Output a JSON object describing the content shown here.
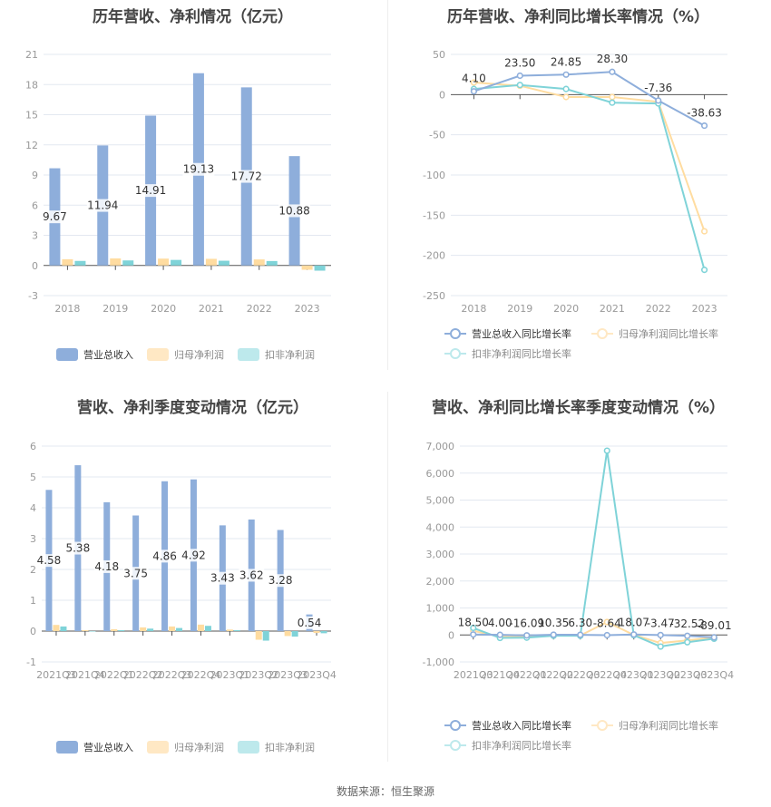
{
  "source": "数据来源：恒生聚源",
  "colors": {
    "revenue": "#8eaedb",
    "net_profit": "#ffdca0",
    "deducted_profit": "#7fd3d8",
    "revenue_legend": "#8eaedb",
    "net_profit_legend": "#ffe8c4",
    "deducted_legend": "#bde9ec",
    "grid": "#e3e8f0",
    "axis": "#555555",
    "tick_text": "#999999",
    "label_text": "#333333"
  },
  "chart_data": [
    {
      "id": "annual-amounts",
      "type": "bar",
      "title": "历年营收、净利情况（亿元）",
      "categories": [
        "2018",
        "2019",
        "2020",
        "2021",
        "2022",
        "2023"
      ],
      "series": [
        {
          "name": "营业总收入",
          "values": [
            9.67,
            11.94,
            14.91,
            19.13,
            17.72,
            10.88
          ]
        },
        {
          "name": "归母净利润",
          "values": [
            0.62,
            0.7,
            0.68,
            0.66,
            0.6,
            -0.43
          ]
        },
        {
          "name": "扣非净利润",
          "values": [
            0.45,
            0.5,
            0.55,
            0.47,
            0.44,
            -0.52
          ]
        }
      ],
      "data_labels": [
        "9.67",
        "11.94",
        "14.91",
        "19.13",
        "17.72",
        "10.88"
      ],
      "yticks": [
        "21",
        "18",
        "15",
        "12",
        "9",
        "6",
        "3",
        "0",
        "-3"
      ],
      "ylim": [
        -3,
        21
      ],
      "legend": [
        "营业总收入",
        "归母净利润",
        "扣非净利润"
      ],
      "legend_position": "bottom",
      "grid": true
    },
    {
      "id": "annual-growth",
      "type": "line",
      "title": "历年营收、净利同比增长率情况（%）",
      "categories": [
        "2018",
        "2019",
        "2020",
        "2021",
        "2022",
        "2023"
      ],
      "series": [
        {
          "name": "营业总收入同比增长率",
          "values": [
            4.1,
            23.5,
            24.85,
            28.3,
            -7.36,
            -38.63
          ]
        },
        {
          "name": "归母净利润同比增长率",
          "values": [
            15,
            11,
            -3,
            -3,
            -9,
            -170
          ]
        },
        {
          "name": "扣非净利润同比增长率",
          "values": [
            7,
            12,
            7,
            -10,
            -11,
            -218
          ]
        }
      ],
      "data_labels": [
        "4.10",
        "23.50",
        "24.85",
        "28.30",
        "-7.36",
        "-38.63"
      ],
      "yticks": [
        "50",
        "0",
        "-50",
        "-100",
        "-150",
        "-200",
        "-250"
      ],
      "ylim": [
        -250,
        50
      ],
      "legend": [
        "营业总收入同比增长率",
        "归母净利润同比增长率",
        "扣非净利润同比增长率"
      ],
      "legend_position": "bottom",
      "grid": true
    },
    {
      "id": "quarterly-amounts",
      "type": "bar",
      "title": "营收、净利季度变动情况（亿元）",
      "categories": [
        "2021Q3",
        "2021Q4",
        "2022Q1",
        "2022Q2",
        "2022Q3",
        "2022Q4",
        "2023Q1",
        "2023Q2",
        "2023Q3",
        "2023Q4"
      ],
      "series": [
        {
          "name": "营业总收入",
          "values": [
            4.58,
            5.38,
            4.18,
            3.75,
            4.86,
            4.92,
            3.43,
            3.62,
            3.28,
            0.54
          ]
        },
        {
          "name": "归母净利润",
          "values": [
            0.2,
            0.03,
            0.06,
            0.12,
            0.15,
            0.21,
            0.05,
            -0.28,
            -0.16,
            -0.06
          ]
        },
        {
          "name": "扣非净利润",
          "values": [
            0.15,
            0.0,
            0.03,
            0.08,
            0.1,
            0.17,
            0.03,
            -0.31,
            -0.18,
            -0.07
          ]
        }
      ],
      "data_labels": [
        "4.58",
        "5.38",
        "4.18",
        "3.75",
        "4.86",
        "4.92",
        "3.43",
        "3.62",
        "3.28",
        "0.54"
      ],
      "yticks": [
        "6",
        "5",
        "4",
        "3",
        "2",
        "1",
        "0",
        "-1"
      ],
      "ylim": [
        -1,
        6
      ],
      "legend": [
        "营业总收入",
        "归母净利润",
        "扣非净利润"
      ],
      "legend_position": "bottom",
      "grid": true
    },
    {
      "id": "quarterly-growth",
      "type": "line",
      "title": "营收、净利同比增长率季度变动情况（%）",
      "categories": [
        "2021Q3",
        "2021Q4",
        "2022Q1",
        "2022Q2",
        "2022Q3",
        "2022Q4",
        "2023Q1",
        "2023Q2",
        "2023Q3",
        "2023Q4"
      ],
      "series": [
        {
          "name": "营业总收入同比增长率",
          "values": [
            18.5,
            4.0,
            -16.09,
            10.35,
            6.3,
            -8.64,
            18.07,
            -3.47,
            -32.52,
            -89.01
          ]
        },
        {
          "name": "归母净利润同比增长率",
          "values": [
            150,
            -60,
            -60,
            -20,
            -20,
            480,
            0,
            -300,
            -200,
            -90
          ]
        },
        {
          "name": "扣非净利润同比增长率",
          "values": [
            260,
            -110,
            -100,
            -30,
            -30,
            6830,
            -10,
            -430,
            -270,
            -140
          ]
        }
      ],
      "data_labels": [
        "18.50",
        "4.00",
        "-16.09",
        "10.35",
        "6.30",
        "-8.64",
        "18.07",
        "-3.47",
        "-32.52",
        "-89.01"
      ],
      "yticks": [
        "7,000",
        "6,000",
        "5,000",
        "4,000",
        "3,000",
        "2,000",
        "1,000",
        "0",
        "-1,000"
      ],
      "ylim": [
        -1000,
        7000
      ],
      "legend": [
        "营业总收入同比增长率",
        "归母净利润同比增长率",
        "扣非净利润同比增长率"
      ],
      "legend_position": "bottom",
      "grid": true
    }
  ]
}
